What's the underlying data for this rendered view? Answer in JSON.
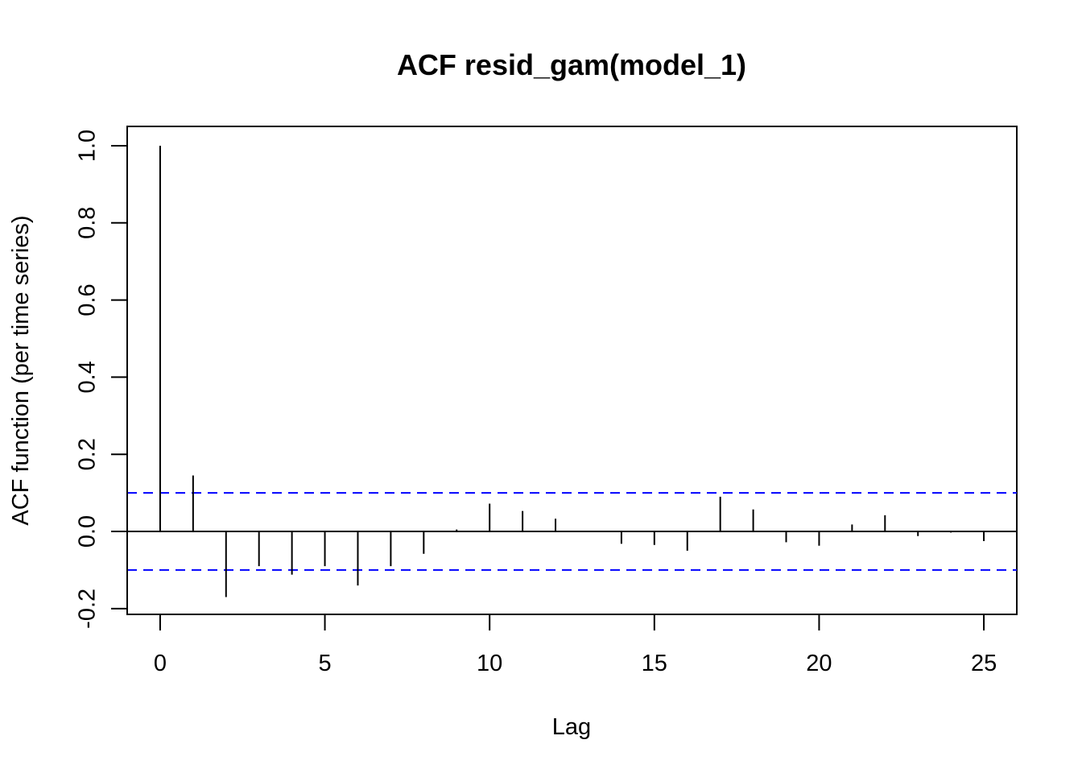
{
  "chart_data": {
    "type": "bar",
    "title": "ACF resid_gam(model_1)",
    "xlabel": "Lag",
    "ylabel": "ACF function (per time series)",
    "xlim": [
      -1,
      26
    ],
    "ylim": [
      -0.215,
      1.05
    ],
    "x_ticks": [
      0,
      5,
      10,
      15,
      20,
      25
    ],
    "y_ticks": [
      -0.2,
      0.0,
      0.2,
      0.4,
      0.6,
      0.8,
      1.0
    ],
    "x_tick_labels": [
      "0",
      "5",
      "10",
      "15",
      "20",
      "25"
    ],
    "y_tick_labels": [
      "-0.2",
      "0.0",
      "0.2",
      "0.4",
      "0.6",
      "0.8",
      "1.0"
    ],
    "grid": false,
    "lags": [
      0,
      1,
      2,
      3,
      4,
      5,
      6,
      7,
      8,
      9,
      10,
      11,
      12,
      13,
      14,
      15,
      16,
      17,
      18,
      19,
      20,
      21,
      22,
      23,
      24,
      25
    ],
    "values": [
      1.0,
      0.145,
      -0.17,
      -0.09,
      -0.112,
      -0.09,
      -0.14,
      -0.09,
      -0.058,
      0.005,
      0.072,
      0.053,
      0.033,
      -0.002,
      -0.032,
      -0.035,
      -0.05,
      0.09,
      0.057,
      -0.028,
      -0.037,
      0.018,
      0.042,
      -0.012,
      -0.003,
      -0.025
    ],
    "confidence_bounds": [
      0.1,
      -0.1
    ],
    "colors": {
      "bars": "#000000",
      "confidence": "#0000ff",
      "axes": "#000000"
    }
  }
}
